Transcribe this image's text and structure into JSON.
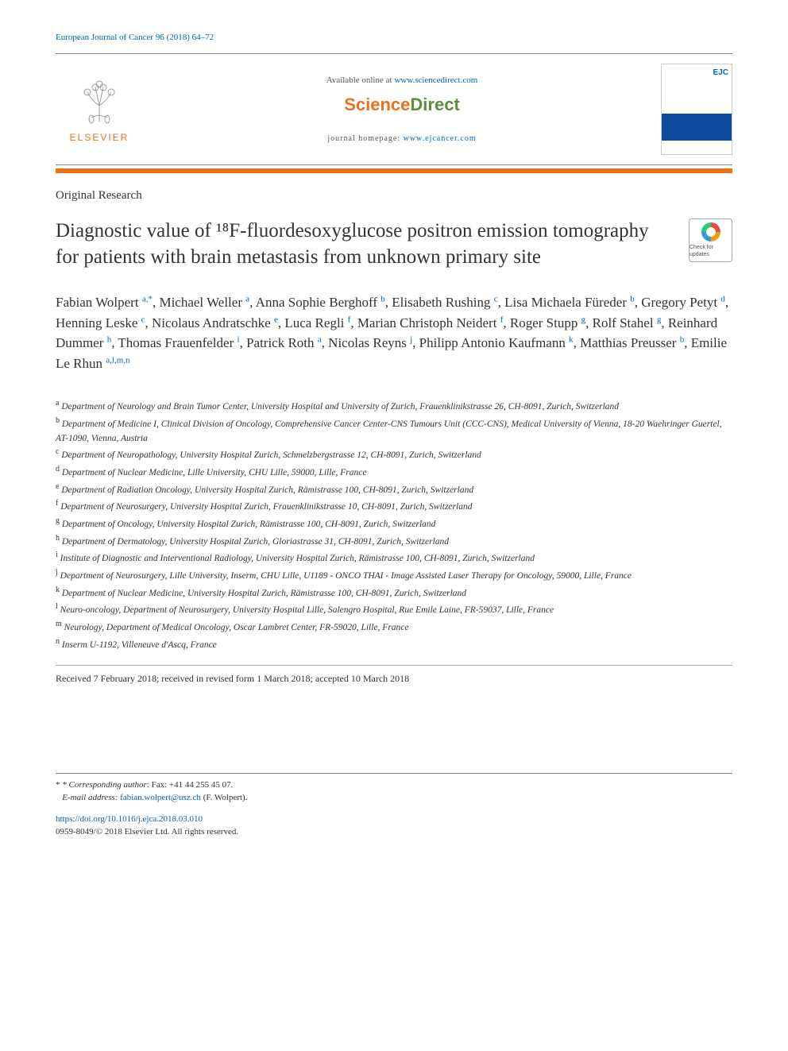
{
  "journal_ref": "European Journal of Cancer 96 (2018) 64–72",
  "header": {
    "elsevier_label": "ELSEVIER",
    "available_prefix": "Available online at ",
    "available_link": "www.sciencedirect.com",
    "sd_science": "Science",
    "sd_direct": "Direct",
    "homepage_prefix": "journal homepage: ",
    "homepage_link": "www.ejcancer.com",
    "cover_badge": "EJC"
  },
  "check_updates": "Check for updates",
  "article_type": "Original Research",
  "title": "Diagnostic value of ¹⁸F-fluordesoxyglucose positron emission tomography for patients with brain metastasis from unknown primary site",
  "authors_html": "Fabian Wolpert <sup>a,*</sup>, Michael Weller <sup>a</sup>, Anna Sophie Berghoff <sup>b</sup>, Elisabeth Rushing <sup>c</sup>, Lisa Michaela Füreder <sup>b</sup>, Gregory Petyt <sup>d</sup>, Henning Leske <sup>c</sup>, Nicolaus Andratschke <sup>e</sup>, Luca Regli <sup>f</sup>, Marian Christoph Neidert <sup>f</sup>, Roger Stupp <sup>g</sup>, Rolf Stahel <sup>g</sup>, Reinhard Dummer <sup>h</sup>, Thomas Frauenfelder <sup>i</sup>, Patrick Roth <sup>a</sup>, Nicolas Reyns <sup>j</sup>, Philipp Antonio Kaufmann <sup>k</sup>, Matthias Preusser <sup>b</sup>, Emilie Le Rhun <sup>a,l,m,n</sup>",
  "affiliations": [
    {
      "key": "a",
      "text": "Department of Neurology and Brain Tumor Center, University Hospital and University of Zurich, Frauenklinikstrasse 26, CH-8091, Zurich, Switzerland"
    },
    {
      "key": "b",
      "text": "Department of Medicine I, Clinical Division of Oncology, Comprehensive Cancer Center-CNS Tumours Unit (CCC-CNS), Medical University of Vienna, 18-20 Waehringer Guertel, AT-1090, Vienna, Austria"
    },
    {
      "key": "c",
      "text": "Department of Neuropathology, University Hospital Zurich, Schmelzbergstrasse 12, CH-8091, Zurich, Switzerland"
    },
    {
      "key": "d",
      "text": "Department of Nuclear Medicine, Lille University, CHU Lille, 59000, Lille, France"
    },
    {
      "key": "e",
      "text": "Department of Radiation Oncology, University Hospital Zurich, Rämistrasse 100, CH-8091, Zurich, Switzerland"
    },
    {
      "key": "f",
      "text": "Department of Neurosurgery, University Hospital Zurich, Frauenklinikstrasse 10, CH-8091, Zurich, Switzerland"
    },
    {
      "key": "g",
      "text": "Department of Oncology, University Hospital Zurich, Rämistrasse 100, CH-8091, Zurich, Switzerland"
    },
    {
      "key": "h",
      "text": "Department of Dermatology, University Hospital Zurich, Gloriastrasse 31, CH-8091, Zurich, Switzerland"
    },
    {
      "key": "i",
      "text": "Institute of Diagnostic and Interventional Radiology, University Hospital Zurich, Rämistrasse 100, CH-8091, Zurich, Switzerland"
    },
    {
      "key": "j",
      "text": "Department of Neurosurgery, Lille University, Inserm, CHU Lille, U1189 - ONCO THAI - Image Assisted Laser Therapy for Oncology, 59000, Lille, France"
    },
    {
      "key": "k",
      "text": "Department of Nuclear Medicine, University Hospital Zurich, Rämistrasse 100, CH-8091, Zurich, Switzerland"
    },
    {
      "key": "l",
      "text": "Neuro-oncology, Department of Neurosurgery, University Hospital Lille, Salengro Hospital, Rue Emile Laine, FR-59037, Lille, France"
    },
    {
      "key": "m",
      "text": "Neurology, Department of Medical Oncology, Oscar Lambret Center, FR-59020, Lille, France"
    },
    {
      "key": "n",
      "text": "Inserm U-1192, Villeneuve d'Ascq, France"
    }
  ],
  "received": "Received 7 February 2018; received in revised form 1 March 2018; accepted 10 March 2018",
  "footnotes": {
    "corresponding_label": "* Corresponding author",
    "corresponding_text": ": Fax: +41 44 255 45 07.",
    "email_label": "E-mail address:",
    "email": "fabian.wolpert@usz.ch",
    "email_suffix": " (F. Wolpert)."
  },
  "doi": "https://doi.org/10.1016/j.ejca.2018.03.010",
  "copyright": "0959-8049/© 2018 Elsevier Ltd. All rights reserved.",
  "colors": {
    "link": "#0066b3",
    "elsevier_orange": "#e9711c",
    "sd_green": "#5a8f3d",
    "text": "#333333",
    "rule": "#888888"
  },
  "typography": {
    "body_fontsize": 13,
    "title_fontsize": 25,
    "authors_fontsize": 17,
    "affil_fontsize": 11.5,
    "footnote_fontsize": 11
  }
}
